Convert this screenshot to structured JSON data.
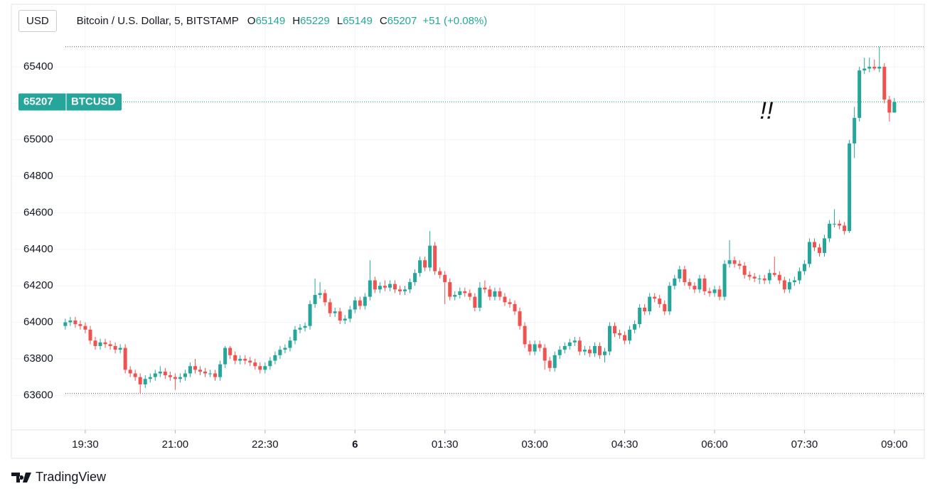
{
  "chart_data": {
    "type": "candlestick",
    "currency": "USD",
    "symbol": "Bitcoin / U.S. Dollar, 5, BITSTAMP",
    "ohlc_labels": [
      "O",
      "H",
      "L",
      "C"
    ],
    "change": "+51 (+0.08%)",
    "ticker": "BTCUSD",
    "annotation": "!!",
    "brand": "TradingView",
    "up_color": "#26a69a",
    "down_color": "#ef5350",
    "grid": true,
    "ylim": [
      63430,
      65610
    ],
    "yticks": [
      63600,
      63800,
      64000,
      64200,
      64400,
      64600,
      64800,
      65000,
      65200,
      65400
    ],
    "xlim": [
      -10.8,
      172
    ],
    "xticks": [
      {
        "value": 4,
        "label": "19:30"
      },
      {
        "value": 22,
        "label": "21:00"
      },
      {
        "value": 40,
        "label": "22:30"
      },
      {
        "value": 58,
        "label": "6"
      },
      {
        "value": 76,
        "label": "01:30"
      },
      {
        "value": 94,
        "label": "03:00"
      },
      {
        "value": 112,
        "label": "04:30"
      },
      {
        "value": 130,
        "label": "06:00"
      },
      {
        "value": 148,
        "label": "07:30"
      },
      {
        "value": 166,
        "label": "09:00"
      }
    ],
    "ohlc": [
      [
        63980,
        64020,
        63960,
        64000
      ],
      [
        64000,
        64030,
        63980,
        64010
      ],
      [
        64010,
        64030,
        63970,
        63990
      ],
      [
        63990,
        64010,
        63960,
        63980
      ],
      [
        63980,
        64000,
        63940,
        63960
      ],
      [
        63960,
        63980,
        63880,
        63900
      ],
      [
        63900,
        63920,
        63850,
        63870
      ],
      [
        63870,
        63910,
        63850,
        63890
      ],
      [
        63890,
        63910,
        63860,
        63880
      ],
      [
        63880,
        63900,
        63850,
        63870
      ],
      [
        63870,
        63890,
        63830,
        63850
      ],
      [
        63850,
        63880,
        63830,
        63860
      ],
      [
        63860,
        63880,
        63720,
        63740
      ],
      [
        63740,
        63760,
        63700,
        63720
      ],
      [
        63720,
        63740,
        63680,
        63700
      ],
      [
        63700,
        63720,
        63610,
        63660
      ],
      [
        63660,
        63710,
        63640,
        63690
      ],
      [
        63690,
        63720,
        63670,
        63700
      ],
      [
        63700,
        63740,
        63680,
        63720
      ],
      [
        63720,
        63760,
        63700,
        63730
      ],
      [
        63730,
        63750,
        63690,
        63710
      ],
      [
        63710,
        63730,
        63680,
        63700
      ],
      [
        63700,
        63720,
        63630,
        63690
      ],
      [
        63690,
        63720,
        63670,
        63700
      ],
      [
        63700,
        63740,
        63680,
        63720
      ],
      [
        63720,
        63780,
        63700,
        63760
      ],
      [
        63760,
        63800,
        63720,
        63740
      ],
      [
        63740,
        63760,
        63710,
        63730
      ],
      [
        63730,
        63750,
        63700,
        63720
      ],
      [
        63720,
        63740,
        63700,
        63720
      ],
      [
        63720,
        63740,
        63680,
        63700
      ],
      [
        63700,
        63790,
        63680,
        63770
      ],
      [
        63770,
        63870,
        63750,
        63860
      ],
      [
        63860,
        63870,
        63800,
        63820
      ],
      [
        63820,
        63840,
        63770,
        63790
      ],
      [
        63790,
        63820,
        63770,
        63800
      ],
      [
        63800,
        63820,
        63770,
        63790
      ],
      [
        63790,
        63810,
        63760,
        63780
      ],
      [
        63780,
        63800,
        63740,
        63760
      ],
      [
        63760,
        63780,
        63720,
        63740
      ],
      [
        63740,
        63780,
        63720,
        63760
      ],
      [
        63760,
        63810,
        63740,
        63790
      ],
      [
        63790,
        63840,
        63770,
        63820
      ],
      [
        63820,
        63870,
        63800,
        63850
      ],
      [
        63850,
        63880,
        63830,
        63860
      ],
      [
        63860,
        63920,
        63840,
        63900
      ],
      [
        63900,
        63980,
        63880,
        63960
      ],
      [
        63960,
        63990,
        63940,
        63970
      ],
      [
        63970,
        64000,
        63950,
        63980
      ],
      [
        63980,
        64120,
        63960,
        64100
      ],
      [
        64100,
        64240,
        64080,
        64150
      ],
      [
        64150,
        64220,
        64130,
        64160
      ],
      [
        64160,
        64180,
        64090,
        64110
      ],
      [
        64110,
        64130,
        64030,
        64050
      ],
      [
        64050,
        64080,
        64030,
        64060
      ],
      [
        64060,
        64080,
        63990,
        64010
      ],
      [
        64010,
        64040,
        63990,
        64020
      ],
      [
        64020,
        64090,
        64000,
        64070
      ],
      [
        64070,
        64140,
        64050,
        64120
      ],
      [
        64120,
        64140,
        64070,
        64090
      ],
      [
        64090,
        64160,
        64070,
        64140
      ],
      [
        64140,
        64340,
        64120,
        64230
      ],
      [
        64230,
        64250,
        64160,
        64180
      ],
      [
        64180,
        64220,
        64160,
        64200
      ],
      [
        64200,
        64230,
        64170,
        64190
      ],
      [
        64190,
        64230,
        64170,
        64210
      ],
      [
        64210,
        64230,
        64160,
        64180
      ],
      [
        64180,
        64200,
        64150,
        64170
      ],
      [
        64170,
        64200,
        64150,
        64180
      ],
      [
        64180,
        64240,
        64160,
        64220
      ],
      [
        64220,
        64290,
        64200,
        64270
      ],
      [
        64270,
        64360,
        64250,
        64340
      ],
      [
        64340,
        64360,
        64280,
        64300
      ],
      [
        64300,
        64500,
        64280,
        64420
      ],
      [
        64420,
        64440,
        64260,
        64280
      ],
      [
        64280,
        64300,
        64240,
        64260
      ],
      [
        64260,
        64280,
        64100,
        64220
      ],
      [
        64220,
        64240,
        64120,
        64140
      ],
      [
        64140,
        64170,
        64120,
        64150
      ],
      [
        64150,
        64190,
        64130,
        64170
      ],
      [
        64170,
        64190,
        64140,
        64160
      ],
      [
        64160,
        64180,
        64120,
        64140
      ],
      [
        64140,
        64160,
        64060,
        64080
      ],
      [
        64080,
        64220,
        64060,
        64190
      ],
      [
        64190,
        64230,
        64160,
        64180
      ],
      [
        64180,
        64200,
        64120,
        64140
      ],
      [
        64140,
        64190,
        64120,
        64170
      ],
      [
        64170,
        64190,
        64120,
        64140
      ],
      [
        64140,
        64160,
        64090,
        64110
      ],
      [
        64110,
        64130,
        64080,
        64100
      ],
      [
        64100,
        64120,
        64040,
        64060
      ],
      [
        64060,
        64080,
        63960,
        63980
      ],
      [
        63980,
        64000,
        63860,
        63880
      ],
      [
        63880,
        63900,
        63820,
        63840
      ],
      [
        63840,
        63900,
        63820,
        63880
      ],
      [
        63880,
        63900,
        63840,
        63860
      ],
      [
        63860,
        63880,
        63740,
        63790
      ],
      [
        63790,
        63810,
        63730,
        63750
      ],
      [
        63750,
        63840,
        63730,
        63820
      ],
      [
        63820,
        63870,
        63800,
        63850
      ],
      [
        63850,
        63890,
        63830,
        63870
      ],
      [
        63870,
        63910,
        63850,
        63890
      ],
      [
        63890,
        63920,
        63870,
        63900
      ],
      [
        63900,
        63920,
        63820,
        63840
      ],
      [
        63840,
        63870,
        63820,
        63850
      ],
      [
        63850,
        63870,
        63810,
        63830
      ],
      [
        63830,
        63890,
        63810,
        63870
      ],
      [
        63870,
        63890,
        63800,
        63820
      ],
      [
        63820,
        63860,
        63780,
        63840
      ],
      [
        63840,
        64000,
        63820,
        63980
      ],
      [
        63980,
        64000,
        63920,
        63940
      ],
      [
        63940,
        63960,
        63910,
        63930
      ],
      [
        63930,
        63950,
        63880,
        63900
      ],
      [
        63900,
        63980,
        63880,
        63960
      ],
      [
        63960,
        64010,
        63940,
        63990
      ],
      [
        63990,
        64100,
        63970,
        64080
      ],
      [
        64080,
        64100,
        64040,
        64060
      ],
      [
        64060,
        64160,
        64040,
        64140
      ],
      [
        64140,
        64160,
        64110,
        64130
      ],
      [
        64130,
        64150,
        64080,
        64100
      ],
      [
        64100,
        64120,
        64040,
        64060
      ],
      [
        64060,
        64220,
        64040,
        64200
      ],
      [
        64200,
        64260,
        64180,
        64240
      ],
      [
        64240,
        64310,
        64220,
        64290
      ],
      [
        64290,
        64310,
        64200,
        64220
      ],
      [
        64220,
        64240,
        64180,
        64200
      ],
      [
        64200,
        64220,
        64160,
        64180
      ],
      [
        64180,
        64260,
        64160,
        64240
      ],
      [
        64240,
        64260,
        64150,
        64170
      ],
      [
        64170,
        64190,
        64140,
        64160
      ],
      [
        64160,
        64200,
        64140,
        64180
      ],
      [
        64180,
        64200,
        64120,
        64140
      ],
      [
        64140,
        64340,
        64120,
        64320
      ],
      [
        64320,
        64450,
        64300,
        64340
      ],
      [
        64340,
        64360,
        64300,
        64320
      ],
      [
        64320,
        64340,
        64290,
        64310
      ],
      [
        64310,
        64330,
        64240,
        64260
      ],
      [
        64260,
        64280,
        64230,
        64250
      ],
      [
        64250,
        64270,
        64220,
        64240
      ],
      [
        64240,
        64260,
        64210,
        64240
      ],
      [
        64240,
        64260,
        64210,
        64230
      ],
      [
        64230,
        64290,
        64210,
        64270
      ],
      [
        64270,
        64360,
        64250,
        64260
      ],
      [
        64260,
        64280,
        64210,
        64230
      ],
      [
        64230,
        64250,
        64160,
        64180
      ],
      [
        64180,
        64240,
        64160,
        64220
      ],
      [
        64220,
        64250,
        64200,
        64230
      ],
      [
        64230,
        64300,
        64210,
        64280
      ],
      [
        64280,
        64340,
        64260,
        64320
      ],
      [
        64320,
        64460,
        64300,
        64440
      ],
      [
        64440,
        64460,
        64390,
        64410
      ],
      [
        64410,
        64430,
        64360,
        64380
      ],
      [
        64380,
        64480,
        64360,
        64460
      ],
      [
        64460,
        64560,
        64440,
        64540
      ],
      [
        64540,
        64620,
        64520,
        64540
      ],
      [
        64540,
        64560,
        64510,
        64530
      ],
      [
        64530,
        64550,
        64480,
        64500
      ],
      [
        64500,
        65000,
        64490,
        64980
      ],
      [
        64980,
        65180,
        64900,
        65120
      ],
      [
        65120,
        65400,
        65100,
        65380
      ],
      [
        65380,
        65450,
        65360,
        65390
      ],
      [
        65390,
        65450,
        65370,
        65400
      ],
      [
        65400,
        65440,
        65380,
        65390
      ],
      [
        65390,
        65510,
        65370,
        65400
      ],
      [
        65400,
        65420,
        65200,
        65220
      ],
      [
        65220,
        65240,
        65100,
        65149
      ],
      [
        65149,
        65229,
        65149,
        65207
      ]
    ]
  }
}
